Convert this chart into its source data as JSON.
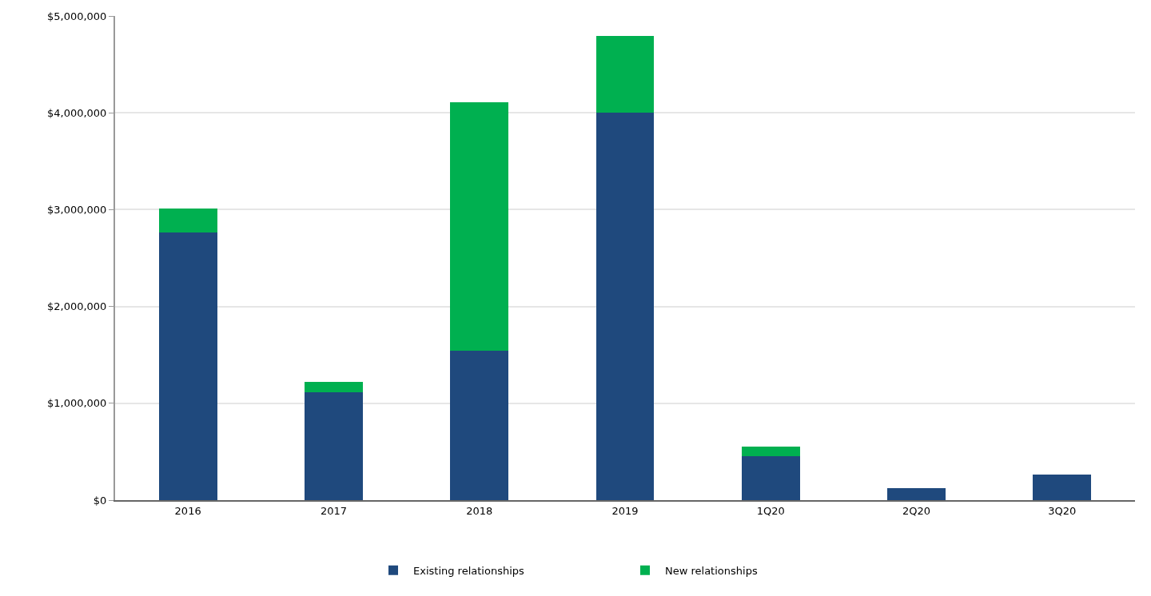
{
  "chart_data": {
    "type": "bar",
    "stacked": true,
    "categories": [
      "2016",
      "2017",
      "2018",
      "2019",
      "1Q20",
      "2Q20",
      "3Q20"
    ],
    "series": [
      {
        "name": "Existing relationships",
        "color": "#1f497d",
        "values": [
          2760000,
          1110000,
          1540000,
          4000000,
          450000,
          120000,
          260000
        ]
      },
      {
        "name": "New relationships",
        "color": "#00b050",
        "values": [
          250000,
          110000,
          2570000,
          790000,
          100000,
          0,
          0
        ]
      }
    ],
    "ylim": [
      0,
      5000000
    ],
    "yticks": [
      {
        "value": 0,
        "label": "$0"
      },
      {
        "value": 1000000,
        "label": "$1,000,000"
      },
      {
        "value": 2000000,
        "label": "$2,000,000"
      },
      {
        "value": 3000000,
        "label": "$3,000,000"
      },
      {
        "value": 4000000,
        "label": "$4,000,000"
      },
      {
        "value": 5000000,
        "label": "$5,000,000"
      }
    ],
    "grid": "y",
    "legend": "bottom"
  }
}
